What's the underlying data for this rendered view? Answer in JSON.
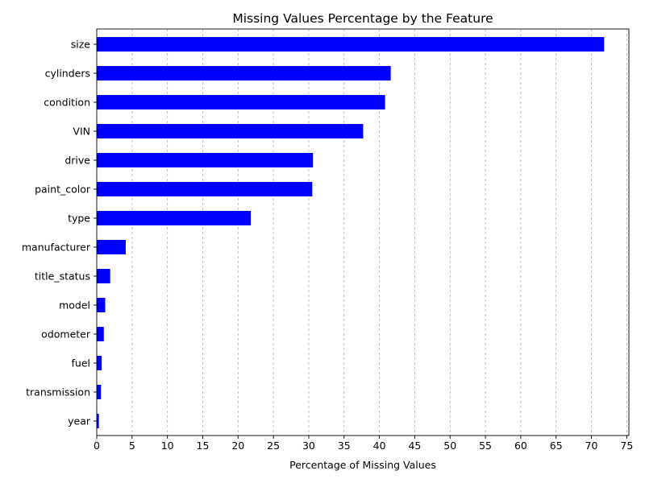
{
  "chart_data": {
    "type": "bar",
    "orientation": "horizontal",
    "title": "Missing Values Percentage by the Feature",
    "xlabel": "Percentage of Missing Values",
    "ylabel": "",
    "xlim": [
      0,
      75.3
    ],
    "xticks": [
      0,
      5,
      10,
      15,
      20,
      25,
      30,
      35,
      40,
      45,
      50,
      55,
      60,
      65,
      70,
      75
    ],
    "grid": "x-dashed",
    "bar_color": "#0000ff",
    "categories": [
      "size",
      "cylinders",
      "condition",
      "VIN",
      "drive",
      "paint_color",
      "type",
      "manufacturer",
      "title_status",
      "model",
      "odometer",
      "fuel",
      "transmission",
      "year"
    ],
    "values": [
      71.8,
      41.6,
      40.8,
      37.7,
      30.6,
      30.5,
      21.8,
      4.1,
      1.9,
      1.2,
      1.0,
      0.7,
      0.6,
      0.3
    ]
  }
}
